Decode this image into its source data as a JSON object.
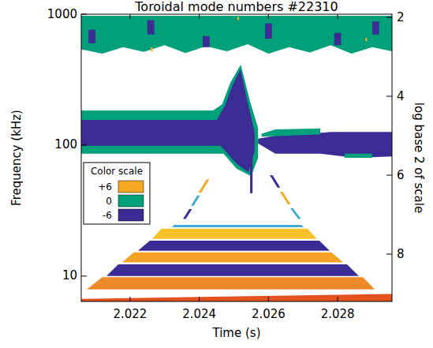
{
  "chart_data": {
    "type": "spectrogram",
    "title": "Toroidal mode numbers #22310",
    "x_label": "Time (s)",
    "y_label": "Frequency (kHz)",
    "y2_label": "log base 2 of scale",
    "xlim": [
      2.02059,
      2.02957
    ],
    "xticks": [
      2.022,
      2.024,
      2.026,
      2.028
    ],
    "ylim": [
      6.4,
      1000
    ],
    "yticks": [
      10,
      100,
      1000
    ],
    "log": "y",
    "y2lim": [
      9.2,
      1.92
    ],
    "y2ticks": [
      2,
      4,
      6,
      8
    ],
    "legend": "left",
    "colorbar": {
      "title": "Color scale",
      "ticks": [
        {
          "value": 6,
          "label": "+6"
        },
        0,
        -6
      ],
      "colors": [
        "#f7a823",
        "#00a07a",
        "#3b2c95"
      ]
    },
    "regions": [
      {
        "color": "#00a07a",
        "points": [
          [
            2.02059,
            973
          ],
          [
            2.02957,
            973
          ],
          [
            2.02957,
            520
          ],
          [
            2.029,
            560
          ],
          [
            2.0284,
            500
          ],
          [
            2.0278,
            580
          ],
          [
            2.0272,
            510
          ],
          [
            2.0266,
            560
          ],
          [
            2.026,
            500
          ],
          [
            2.0254,
            590
          ],
          [
            2.0248,
            520
          ],
          [
            2.0242,
            570
          ],
          [
            2.0236,
            505
          ],
          [
            2.023,
            580
          ],
          [
            2.0224,
            515
          ],
          [
            2.0218,
            560
          ],
          [
            2.0212,
            500
          ],
          [
            2.02059,
            540
          ]
        ]
      },
      {
        "color": "#3b2c95",
        "points": [
          [
            2.0208,
            600
          ],
          [
            2.021,
            600
          ],
          [
            2.021,
            760
          ],
          [
            2.0208,
            760
          ]
        ]
      },
      {
        "color": "#3b2c95",
        "points": [
          [
            2.0225,
            700
          ],
          [
            2.0227,
            700
          ],
          [
            2.0227,
            900
          ],
          [
            2.0225,
            900
          ]
        ]
      },
      {
        "color": "#3b2c95",
        "points": [
          [
            2.0241,
            560
          ],
          [
            2.0243,
            560
          ],
          [
            2.0243,
            680
          ],
          [
            2.0241,
            680
          ]
        ]
      },
      {
        "color": "#3b2c95",
        "points": [
          [
            2.0259,
            650
          ],
          [
            2.0261,
            650
          ],
          [
            2.0261,
            850
          ],
          [
            2.0259,
            850
          ]
        ]
      },
      {
        "color": "#3b2c95",
        "points": [
          [
            2.0279,
            580
          ],
          [
            2.0281,
            580
          ],
          [
            2.0281,
            720
          ],
          [
            2.0279,
            720
          ]
        ]
      },
      {
        "color": "#3b2c95",
        "points": [
          [
            2.029,
            700
          ],
          [
            2.0292,
            700
          ],
          [
            2.0292,
            880
          ],
          [
            2.029,
            880
          ]
        ]
      },
      {
        "color": "#f7a823",
        "points": [
          [
            2.0226,
            520
          ],
          [
            2.02265,
            520
          ],
          [
            2.02265,
            560
          ],
          [
            2.0226,
            560
          ]
        ]
      },
      {
        "color": "#f7a823",
        "points": [
          [
            2.0251,
            900
          ],
          [
            2.02515,
            900
          ],
          [
            2.02515,
            960
          ],
          [
            2.0251,
            960
          ]
        ]
      },
      {
        "color": "#f7a823",
        "points": [
          [
            2.0288,
            620
          ],
          [
            2.02885,
            620
          ],
          [
            2.02885,
            660
          ],
          [
            2.0288,
            660
          ]
        ]
      },
      {
        "color": "#00a07a",
        "points": [
          [
            2.02059,
            86
          ],
          [
            2.0247,
            86
          ],
          [
            2.02508,
            66
          ],
          [
            2.0255,
            58
          ],
          [
            2.0257,
            80
          ],
          [
            2.0257,
            135
          ],
          [
            2.02548,
            210
          ],
          [
            2.0252,
            412
          ],
          [
            2.0249,
            300
          ],
          [
            2.02466,
            205
          ],
          [
            2.0244,
            184
          ],
          [
            2.02059,
            184
          ]
        ]
      },
      {
        "color": "#3b2c95",
        "points": [
          [
            2.02059,
            99
          ],
          [
            2.02462,
            99
          ],
          [
            2.02508,
            72
          ],
          [
            2.02542,
            62
          ],
          [
            2.0256,
            90
          ],
          [
            2.0256,
            125
          ],
          [
            2.02542,
            200
          ],
          [
            2.02519,
            379
          ],
          [
            2.02497,
            290
          ],
          [
            2.02474,
            200
          ],
          [
            2.02451,
            156
          ],
          [
            2.02059,
            156
          ]
        ]
      },
      {
        "color": "#3b2c95",
        "points": [
          [
            2.0257,
            112
          ],
          [
            2.0262,
            118
          ],
          [
            2.027,
            121
          ],
          [
            2.0278,
            126
          ],
          [
            2.02957,
            126
          ],
          [
            2.02957,
            82
          ],
          [
            2.0285,
            80
          ],
          [
            2.0275,
            86
          ],
          [
            2.0262,
            86
          ],
          [
            2.0257,
            103
          ]
        ]
      },
      {
        "color": "#00a07a",
        "points": [
          [
            2.0258,
            116
          ],
          [
            2.0275,
            121
          ],
          [
            2.0275,
            134
          ],
          [
            2.0262,
            132
          ],
          [
            2.0258,
            122
          ]
        ]
      },
      {
        "color": "#00a07a",
        "points": [
          [
            2.0282,
            80
          ],
          [
            2.029,
            80
          ],
          [
            2.029,
            86
          ],
          [
            2.0282,
            86
          ]
        ]
      },
      {
        "color": "#e4521e",
        "points": [
          [
            2.02059,
            6.4
          ],
          [
            2.02957,
            6.4
          ],
          [
            2.02957,
            7.3
          ],
          [
            2.02059,
            6.7
          ]
        ]
      },
      {
        "color": "#ef8a2a",
        "points": [
          [
            2.02075,
            7.9
          ],
          [
            2.02907,
            7.9
          ],
          [
            2.02873,
            9.8
          ],
          [
            2.0212,
            9.8
          ]
        ]
      },
      {
        "color": "#3b2c95",
        "points": [
          [
            2.02132,
            10.0
          ],
          [
            2.02861,
            10.0
          ],
          [
            2.02827,
            12.3
          ],
          [
            2.02166,
            12.3
          ]
        ]
      },
      {
        "color": "#f5a226",
        "points": [
          [
            2.02177,
            12.7
          ],
          [
            2.02816,
            12.7
          ],
          [
            2.02782,
            15.2
          ],
          [
            2.02211,
            15.2
          ]
        ]
      },
      {
        "color": "#3b2c95",
        "points": [
          [
            2.02223,
            15.6
          ],
          [
            2.02777,
            15.6
          ],
          [
            2.02747,
            18.6
          ],
          [
            2.02257,
            18.6
          ]
        ]
      },
      {
        "color": "#f8c12c",
        "points": [
          [
            2.02264,
            19.2
          ],
          [
            2.0274,
            19.2
          ],
          [
            2.02713,
            23.0
          ],
          [
            2.02291,
            23.0
          ]
        ]
      },
      {
        "color": "#3fa9d8",
        "points": [
          [
            2.02321,
            23.6
          ],
          [
            2.02702,
            23.6
          ],
          [
            2.02695,
            24.6
          ],
          [
            2.02328,
            24.6
          ]
        ]
      },
      {
        "color": "#3b2c95",
        "points": [
          [
            2.02353,
            27.3
          ],
          [
            2.02361,
            27.3
          ],
          [
            2.02379,
            32.5
          ],
          [
            2.02371,
            32.5
          ]
        ]
      },
      {
        "color": "#3fa9d8",
        "points": [
          [
            2.02376,
            34.4
          ],
          [
            2.02384,
            34.4
          ],
          [
            2.02402,
            41.2
          ],
          [
            2.02394,
            41.2
          ]
        ]
      },
      {
        "color": "#f7a823",
        "points": [
          [
            2.02398,
            43.5
          ],
          [
            2.02406,
            43.5
          ],
          [
            2.02429,
            54.6
          ],
          [
            2.02421,
            54.6
          ]
        ]
      },
      {
        "color": "#3b2c95",
        "points": [
          [
            2.02604,
            59.0
          ],
          [
            2.02612,
            59.0
          ],
          [
            2.02634,
            47.3
          ],
          [
            2.02626,
            47.3
          ]
        ]
      },
      {
        "color": "#f7a823",
        "points": [
          [
            2.02633,
            44.1
          ],
          [
            2.02641,
            44.1
          ],
          [
            2.02664,
            35.3
          ],
          [
            2.02656,
            35.3
          ]
        ]
      },
      {
        "color": "#3fa9d8",
        "points": [
          [
            2.02663,
            33.0
          ],
          [
            2.02671,
            33.0
          ],
          [
            2.02694,
            27.3
          ],
          [
            2.02686,
            27.3
          ]
        ]
      },
      {
        "color": "#3b2c95",
        "points": [
          [
            2.02547,
            86
          ],
          [
            2.02554,
            86
          ],
          [
            2.02554,
            42.9
          ],
          [
            2.02547,
            42.9
          ]
        ]
      }
    ]
  }
}
